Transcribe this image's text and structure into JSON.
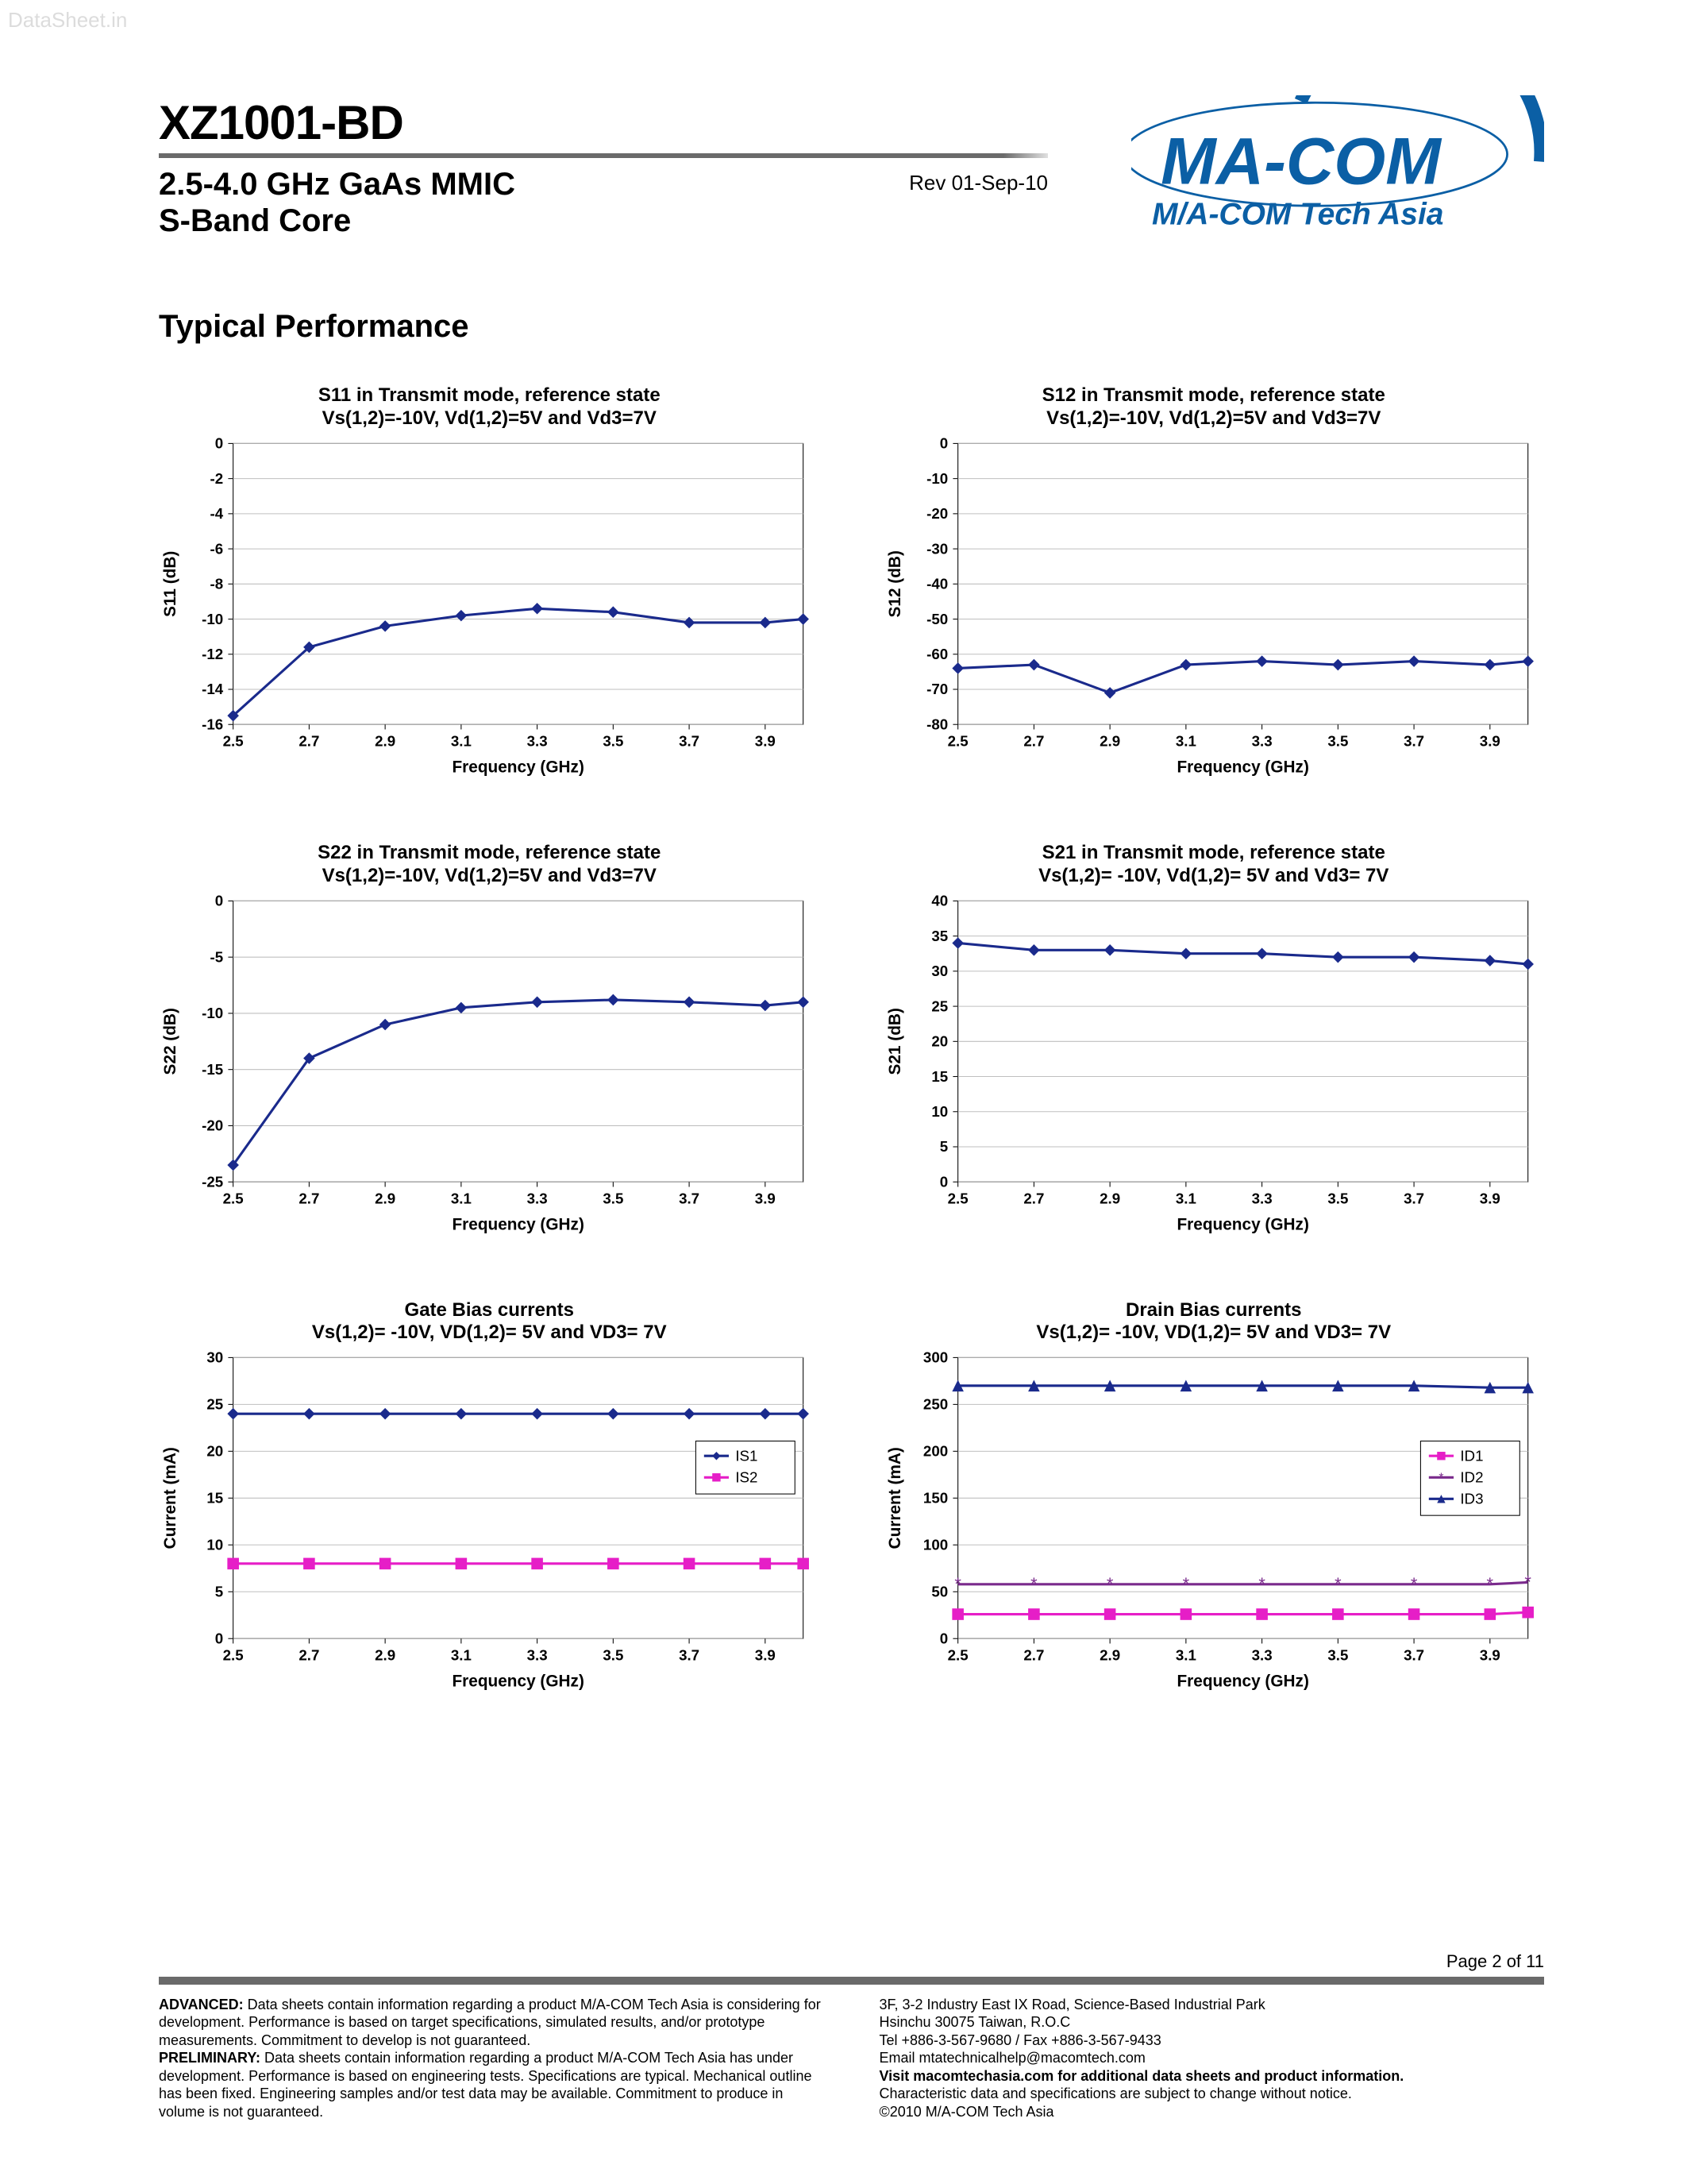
{
  "watermark": "DataSheet.in",
  "header": {
    "part_number": "XZ1001-BD",
    "subtitle_line1": "2.5-4.0 GHz GaAs MMIC",
    "subtitle_line2": "S-Band Core",
    "revision": "Rev 01-Sep-10",
    "logo_main": "MA-COM",
    "logo_tag": "M/A-COM Tech Asia",
    "logo_color": "#0b5fa5"
  },
  "section_title": "Typical Performance",
  "charts": {
    "shared": {
      "x_label": "Frequency (GHz)",
      "x_ticks": [
        2.5,
        2.7,
        2.9,
        3.1,
        3.3,
        3.5,
        3.7,
        3.9
      ],
      "xlim": [
        2.5,
        4.0
      ],
      "line_color": "#1a2a8c",
      "series2_color": "#e61ec7",
      "series3_color": "#7a2a8c",
      "grid_color": "#bfbfbf",
      "axis_color": "#000000",
      "bg_color": "#ffffff",
      "marker_size": 7,
      "line_width": 3,
      "title_fontsize": 24,
      "label_fontsize": 20,
      "tick_fontsize": 18
    },
    "s11": {
      "title_l1": "S11 in Transmit mode, reference state",
      "title_l2": "Vs(1,2)=-10V, Vd(1,2)=5V and Vd3=7V",
      "y_label": "S11 (dB)",
      "ylim": [
        -16,
        0
      ],
      "ytick_step": 2,
      "marker": "diamond",
      "series": [
        {
          "name": "S11",
          "color": "#1a2a8c",
          "x": [
            2.5,
            2.7,
            2.9,
            3.1,
            3.3,
            3.5,
            3.7,
            3.9,
            4.0
          ],
          "y": [
            -15.5,
            -11.6,
            -10.4,
            -9.8,
            -9.4,
            -9.6,
            -10.2,
            -10.2,
            -10.0
          ]
        }
      ]
    },
    "s12": {
      "title_l1": "S12 in Transmit mode, reference state",
      "title_l2": "Vs(1,2)=-10V, Vd(1,2)=5V and Vd3=7V",
      "y_label": "S12 (dB)",
      "ylim": [
        -80,
        0
      ],
      "ytick_step": 10,
      "marker": "diamond",
      "series": [
        {
          "name": "S12",
          "color": "#1a2a8c",
          "x": [
            2.5,
            2.7,
            2.9,
            3.1,
            3.3,
            3.5,
            3.7,
            3.9,
            4.0
          ],
          "y": [
            -64,
            -63,
            -71,
            -63,
            -62,
            -63,
            -62,
            -63,
            -62
          ]
        }
      ]
    },
    "s22": {
      "title_l1": "S22 in Transmit mode, reference state",
      "title_l2": "Vs(1,2)=-10V, Vd(1,2)=5V and Vd3=7V",
      "y_label": "S22 (dB)",
      "ylim": [
        -25,
        0
      ],
      "ytick_step": 5,
      "marker": "diamond",
      "series": [
        {
          "name": "S22",
          "color": "#1a2a8c",
          "x": [
            2.5,
            2.7,
            2.9,
            3.1,
            3.3,
            3.5,
            3.7,
            3.9,
            4.0
          ],
          "y": [
            -23.5,
            -14.0,
            -11.0,
            -9.5,
            -9.0,
            -8.8,
            -9.0,
            -9.3,
            -9.0
          ]
        }
      ]
    },
    "s21": {
      "title_l1": "S21 in Transmit mode, reference state",
      "title_l2": "Vs(1,2)= -10V, Vd(1,2)= 5V and Vd3= 7V",
      "y_label": "S21 (dB)",
      "ylim": [
        0,
        40
      ],
      "ytick_step": 5,
      "marker": "diamond",
      "series": [
        {
          "name": "S21",
          "color": "#1a2a8c",
          "x": [
            2.5,
            2.7,
            2.9,
            3.1,
            3.3,
            3.5,
            3.7,
            3.9,
            4.0
          ],
          "y": [
            34,
            33,
            33,
            32.5,
            32.5,
            32,
            32,
            31.5,
            31
          ]
        }
      ]
    },
    "gate": {
      "title_l1": "Gate Bias currents",
      "title_l2": "Vs(1,2)= -10V, VD(1,2)= 5V and VD3= 7V",
      "y_label": "Current (mA)",
      "ylim": [
        0,
        30
      ],
      "ytick_step": 5,
      "marker": "diamond",
      "legend": [
        "IS1",
        "IS2"
      ],
      "series": [
        {
          "name": "IS1",
          "color": "#1a2a8c",
          "marker": "diamond",
          "x": [
            2.5,
            2.7,
            2.9,
            3.1,
            3.3,
            3.5,
            3.7,
            3.9,
            4.0
          ],
          "y": [
            24,
            24,
            24,
            24,
            24,
            24,
            24,
            24,
            24
          ]
        },
        {
          "name": "IS2",
          "color": "#e61ec7",
          "marker": "square",
          "x": [
            2.5,
            2.7,
            2.9,
            3.1,
            3.3,
            3.5,
            3.7,
            3.9,
            4.0
          ],
          "y": [
            8,
            8,
            8,
            8,
            8,
            8,
            8,
            8,
            8
          ]
        }
      ]
    },
    "drain": {
      "title_l1": "Drain Bias currents",
      "title_l2": "Vs(1,2)= -10V, VD(1,2)= 5V and VD3= 7V",
      "y_label": "Current (mA)",
      "ylim": [
        0,
        300
      ],
      "ytick_step": 50,
      "marker": "mixed",
      "legend": [
        "ID1",
        "ID2",
        "ID3"
      ],
      "series": [
        {
          "name": "ID1",
          "color": "#e61ec7",
          "marker": "square",
          "x": [
            2.5,
            2.7,
            2.9,
            3.1,
            3.3,
            3.5,
            3.7,
            3.9,
            4.0
          ],
          "y": [
            26,
            26,
            26,
            26,
            26,
            26,
            26,
            26,
            28
          ]
        },
        {
          "name": "ID2",
          "color": "#7a2a8c",
          "marker": "star",
          "x": [
            2.5,
            2.7,
            2.9,
            3.1,
            3.3,
            3.5,
            3.7,
            3.9,
            4.0
          ],
          "y": [
            58,
            58,
            58,
            58,
            58,
            58,
            58,
            58,
            60
          ]
        },
        {
          "name": "ID3",
          "color": "#1a2a8c",
          "marker": "triangle",
          "x": [
            2.5,
            2.7,
            2.9,
            3.1,
            3.3,
            3.5,
            3.7,
            3.9,
            4.0
          ],
          "y": [
            270,
            270,
            270,
            270,
            270,
            270,
            270,
            268,
            268
          ]
        }
      ]
    }
  },
  "footer": {
    "page_label": "Page 2 of 11",
    "left": {
      "adv_label": "ADVANCED:",
      "adv_text": " Data sheets contain information regarding a product M/A-COM Tech Asia is considering for development. Performance is based on target specifications, simulated results, and/or prototype measurements. Commitment to develop is not guaranteed.",
      "pre_label": "PRELIMINARY:",
      "pre_text": " Data sheets contain information regarding a product M/A-COM Tech Asia has under development. Performance is based on engineering tests. Specifications are typical. Mechanical outline has been fixed. Engineering samples and/or test data may be available. Commitment to produce in volume is not guaranteed."
    },
    "right": {
      "addr1": "3F, 3-2 Industry East IX Road, Science-Based Industrial Park",
      "addr2": "Hsinchu 30075 Taiwan, R.O.C",
      "tel": "Tel +886-3-567-9680 / Fax +886-3-567-9433",
      "email": "Email mtatechnicalhelp@macomtech.com",
      "visit_label": "Visit macomtechasia.com for additional data sheets and product information.",
      "disc1": "Characteristic data and specifications are subject to change without notice.",
      "copy": "©2010 M/A-COM Tech Asia"
    }
  }
}
